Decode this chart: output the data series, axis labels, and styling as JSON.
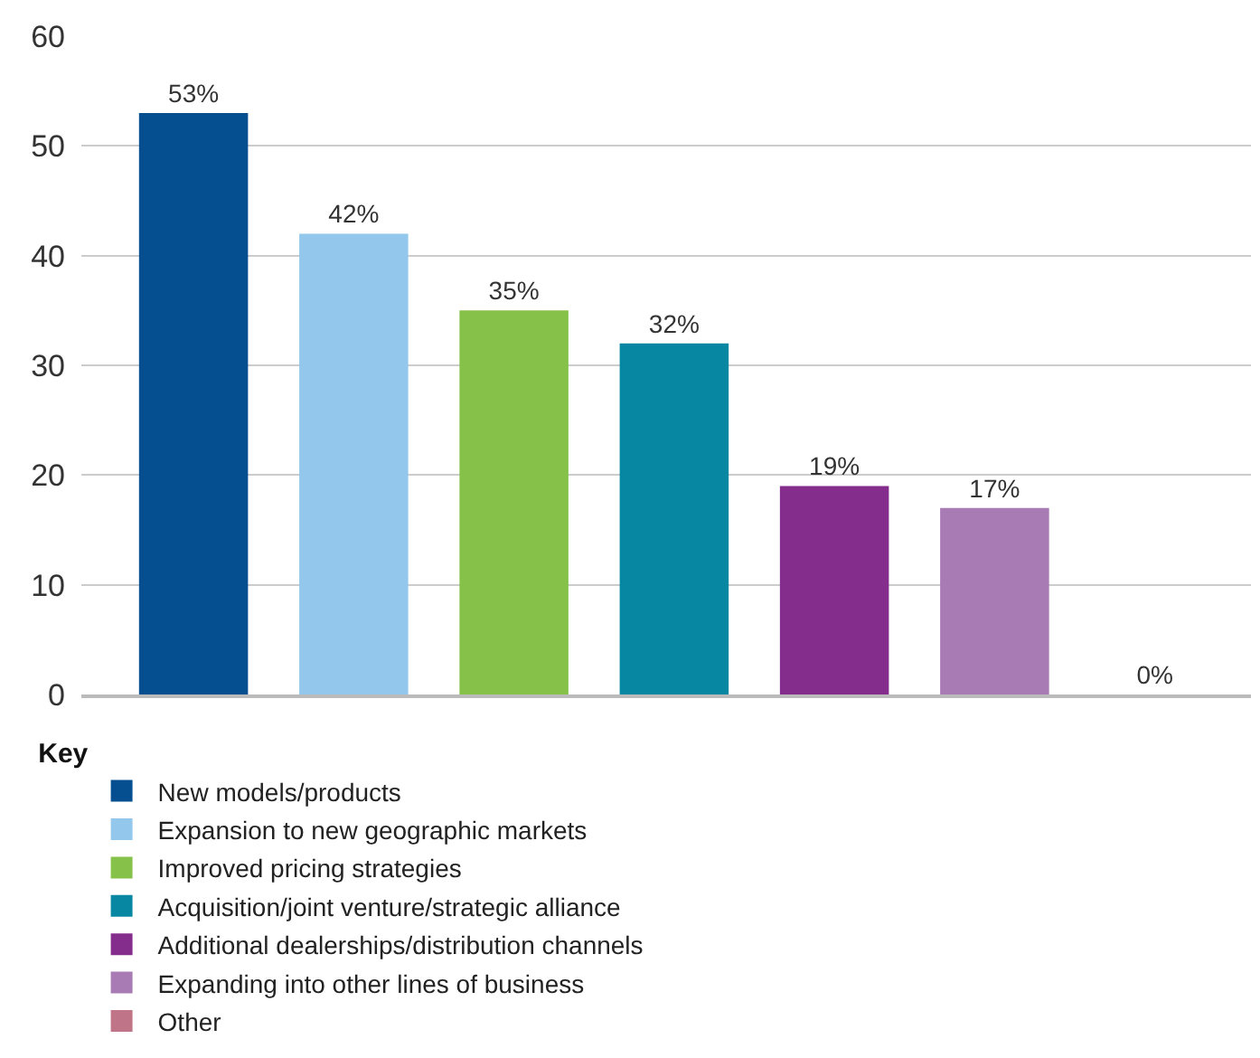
{
  "chart_data": {
    "type": "bar",
    "categories": [
      null,
      null,
      null,
      null,
      null,
      null,
      null
    ],
    "series": [
      {
        "name": "New models/products",
        "color": "#054f91",
        "values": [
          53,
          null,
          null,
          null,
          null,
          null,
          null
        ],
        "value_labels": [
          "53%",
          null,
          null,
          null,
          null,
          null,
          null
        ]
      },
      {
        "name": "Expansion to new geographic markets",
        "color": "#93c8ec",
        "values": [
          null,
          42,
          null,
          null,
          null,
          null,
          null
        ],
        "value_labels": [
          null,
          "42%",
          null,
          null,
          null,
          null,
          null
        ]
      },
      {
        "name": "Improved pricing strategies",
        "color": "#86c249",
        "values": [
          null,
          null,
          35,
          null,
          null,
          null,
          null
        ],
        "value_labels": [
          null,
          null,
          "35%",
          null,
          null,
          null,
          null
        ]
      },
      {
        "name": "Acquisition/joint venture/strategic alliance",
        "color": "#0887a3",
        "values": [
          null,
          null,
          null,
          32,
          null,
          null,
          null
        ],
        "value_labels": [
          null,
          null,
          null,
          "32%",
          null,
          null,
          null
        ]
      },
      {
        "name": "Additional dealerships/distribution channels",
        "color": "#842d8d",
        "values": [
          null,
          null,
          null,
          null,
          19,
          null,
          null
        ],
        "value_labels": [
          null,
          null,
          null,
          null,
          "19%",
          null,
          null
        ]
      },
      {
        "name": "Expanding into other lines of business",
        "color": "#a97bb5",
        "values": [
          null,
          null,
          null,
          null,
          null,
          17,
          null
        ],
        "value_labels": [
          null,
          null,
          null,
          null,
          null,
          "17%",
          null
        ]
      },
      {
        "name": "Other",
        "color": "#c07487",
        "values": [
          null,
          null,
          null,
          null,
          null,
          null,
          0
        ],
        "value_labels": [
          null,
          null,
          null,
          null,
          null,
          null,
          "0%"
        ]
      }
    ],
    "legend_title": "Key",
    "ylim": [
      0,
      60
    ],
    "yticks": [
      0,
      10,
      20,
      30,
      40,
      50,
      60
    ],
    "grid": "y",
    "legend": "bottom",
    "tick_labels": "y"
  }
}
